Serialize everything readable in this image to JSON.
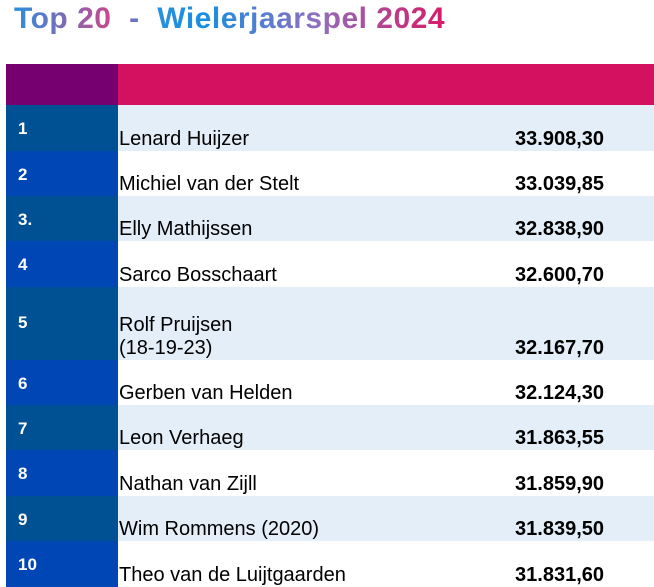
{
  "title": "Top 20  -  Wielerjaarspel 2024",
  "colors": {
    "header_rank": "#760070",
    "header_main": "#d31160",
    "rank_odd": "#005094",
    "rank_even": "#0046b4",
    "row_odd": "#e4eef8",
    "row_even": "#ffffff"
  },
  "rows": [
    {
      "rank": "1",
      "name": "Lenard Huijzer",
      "score": "33.908,30"
    },
    {
      "rank": "2",
      "name": "Michiel van der Stelt",
      "score": "33.039,85"
    },
    {
      "rank": "3.",
      "name": "Elly Mathijssen",
      "score": "32.838,90"
    },
    {
      "rank": "4",
      "name": "Sarco Bosschaart",
      "score": "32.600,70"
    },
    {
      "rank": "5",
      "name": "Rolf Pruijsen",
      "name2": "(18-19-23)",
      "score": "32.167,70"
    },
    {
      "rank": "6",
      "name": "Gerben van Helden",
      "score": "32.124,30"
    },
    {
      "rank": "7",
      "name": "Leon Verhaeg",
      "score": "31.863,55"
    },
    {
      "rank": "8",
      "name": "Nathan van Zijll",
      "score": "31.859,90"
    },
    {
      "rank": "9",
      "name": "Wim Rommens (2020)",
      "score": "31.839,50"
    },
    {
      "rank": "10",
      "name": "Theo van de Luijtgaarden",
      "score": "31.831,60"
    }
  ]
}
